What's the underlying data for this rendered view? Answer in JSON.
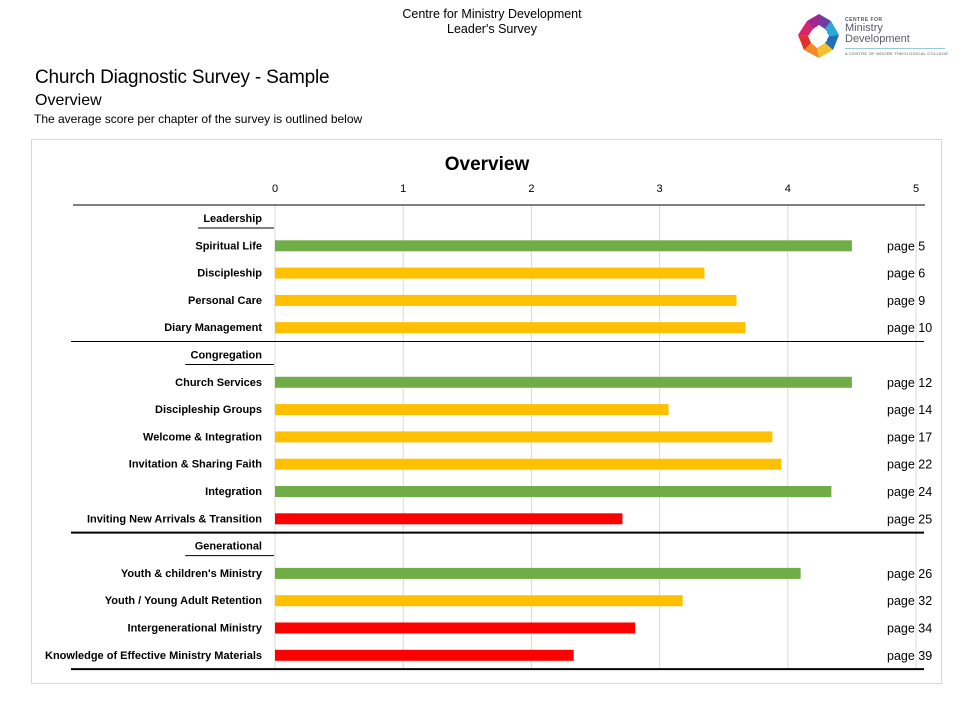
{
  "header": {
    "line1": "Centre for Ministry Development",
    "line2": "Leader's Survey"
  },
  "logo": {
    "small_caps": "CENTRE FOR",
    "name_line1": "Ministry",
    "name_line2": "Development",
    "tagline": "A CENTRE OF MOORE THEOLOGICAL COLLEGE"
  },
  "page": {
    "title": "Church Diagnostic Survey - Sample",
    "subtitle": "Overview",
    "description": "The average score per chapter of the survey is outlined below"
  },
  "colors": {
    "green": "#70ad47",
    "amber": "#ffc000",
    "red": "#ff0000",
    "grid": "#d9d9d9"
  },
  "chart_data": {
    "type": "bar",
    "orientation": "horizontal",
    "title": "Overview",
    "xlabel": "",
    "ylabel": "",
    "xlim": [
      0,
      5
    ],
    "x_ticks": [
      "0",
      "1",
      "2",
      "3",
      "4",
      "5"
    ],
    "grid": true,
    "axis_position": "top",
    "groups": [
      {
        "name": "Leadership",
        "items": [
          {
            "label": "Spiritual Life",
            "value": 4.5,
            "status": "green",
            "page": "page 5"
          },
          {
            "label": "Discipleship",
            "value": 3.35,
            "status": "amber",
            "page": "page 6"
          },
          {
            "label": "Personal Care",
            "value": 3.6,
            "status": "amber",
            "page": "page 9"
          },
          {
            "label": "Diary Management",
            "value": 3.67,
            "status": "amber",
            "page": "page 10"
          }
        ]
      },
      {
        "name": "Congregation",
        "items": [
          {
            "label": "Church Services",
            "value": 4.5,
            "status": "green",
            "page": "page 12"
          },
          {
            "label": "Discipleship Groups",
            "value": 3.07,
            "status": "amber",
            "page": "page 14"
          },
          {
            "label": "Welcome & Integration",
            "value": 3.88,
            "status": "amber",
            "page": "page 17"
          },
          {
            "label": "Invitation & Sharing Faith",
            "value": 3.95,
            "status": "amber",
            "page": "page 22"
          },
          {
            "label": "Integration",
            "value": 4.34,
            "status": "green",
            "page": "page 24"
          },
          {
            "label": "Inviting New Arrivals & Transition",
            "value": 2.71,
            "status": "red",
            "page": "page 25"
          }
        ]
      },
      {
        "name": "Generational",
        "items": [
          {
            "label": "Youth & children's Ministry",
            "value": 4.1,
            "status": "green",
            "page": "page 26"
          },
          {
            "label": "Youth / Young Adult Retention",
            "value": 3.18,
            "status": "amber",
            "page": "page 32"
          },
          {
            "label": "Intergenerational Ministry",
            "value": 2.81,
            "status": "red",
            "page": "page 34"
          },
          {
            "label": "Knowledge of Effective Ministry Materials",
            "value": 2.33,
            "status": "red",
            "page": "page 39"
          }
        ]
      }
    ]
  }
}
